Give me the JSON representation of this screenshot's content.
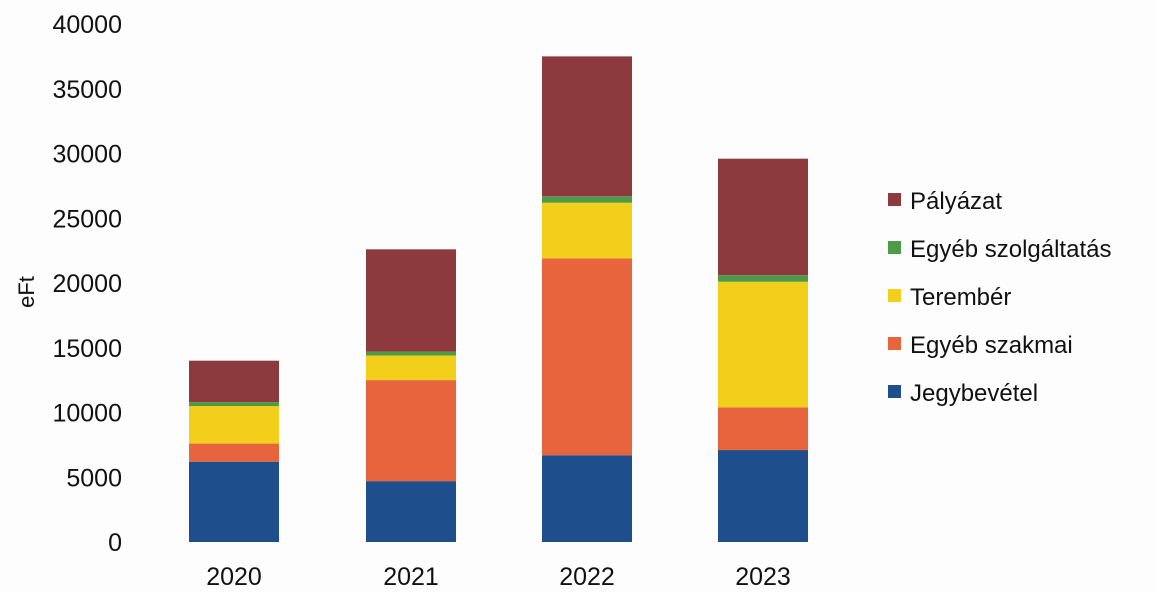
{
  "chart_data": {
    "type": "bar",
    "stacked": true,
    "title": "",
    "xlabel": "",
    "ylabel": "eFt",
    "ylim": [
      0,
      40000
    ],
    "yticks": [
      0,
      5000,
      10000,
      15000,
      20000,
      25000,
      30000,
      35000,
      40000
    ],
    "grid": false,
    "legend_position": "right",
    "categories": [
      "2020",
      "2021",
      "2022",
      "2023"
    ],
    "series": [
      {
        "name": "Jegybevétel",
        "color": "#1f4e8c",
        "values": [
          6200,
          4700,
          6700,
          7100
        ]
      },
      {
        "name": "Egyéb szakmai",
        "color": "#e8643c",
        "values": [
          1400,
          7800,
          15200,
          3300
        ]
      },
      {
        "name": "Terembér",
        "color": "#f2cf1a",
        "values": [
          2900,
          1900,
          4300,
          9700
        ]
      },
      {
        "name": "Egyéb szolgáltatás",
        "color": "#4e9a48",
        "values": [
          300,
          300,
          500,
          500
        ]
      },
      {
        "name": "Pályázat",
        "color": "#8c3a3e",
        "values": [
          3200,
          7900,
          10800,
          9000
        ]
      }
    ],
    "legend_order": [
      "Pályázat",
      "Egyéb szolgáltatás",
      "Terembér",
      "Egyéb szakmai",
      "Jegybevétel"
    ]
  }
}
